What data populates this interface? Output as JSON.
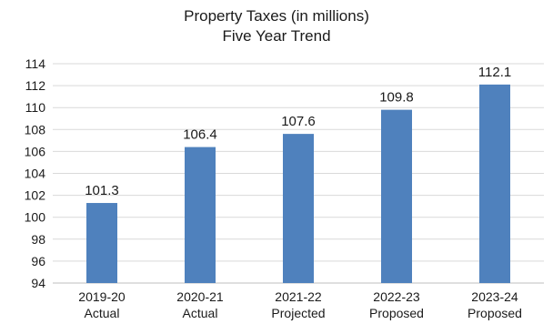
{
  "chart_data": {
    "type": "bar",
    "title": "Property Taxes (in millions)",
    "subtitle": "Five Year Trend",
    "categories": [
      [
        "2019-20",
        "Actual"
      ],
      [
        "2020-21",
        "Actual"
      ],
      [
        "2021-22",
        "Projected"
      ],
      [
        "2022-23",
        "Proposed"
      ],
      [
        "2023-24",
        "Proposed"
      ]
    ],
    "values": [
      101.3,
      106.4,
      107.6,
      109.8,
      112.1
    ],
    "data_labels": [
      "101.3",
      "106.4",
      "107.6",
      "109.8",
      "112.1"
    ],
    "ylim": [
      94,
      114
    ],
    "yticks": [
      94,
      96,
      98,
      100,
      102,
      104,
      106,
      108,
      110,
      112,
      114
    ],
    "grid": true,
    "legend": "none",
    "colors": {
      "bar": "#4F81BD",
      "grid": "#d9d9d9",
      "axis": "#bfbfbf"
    }
  }
}
